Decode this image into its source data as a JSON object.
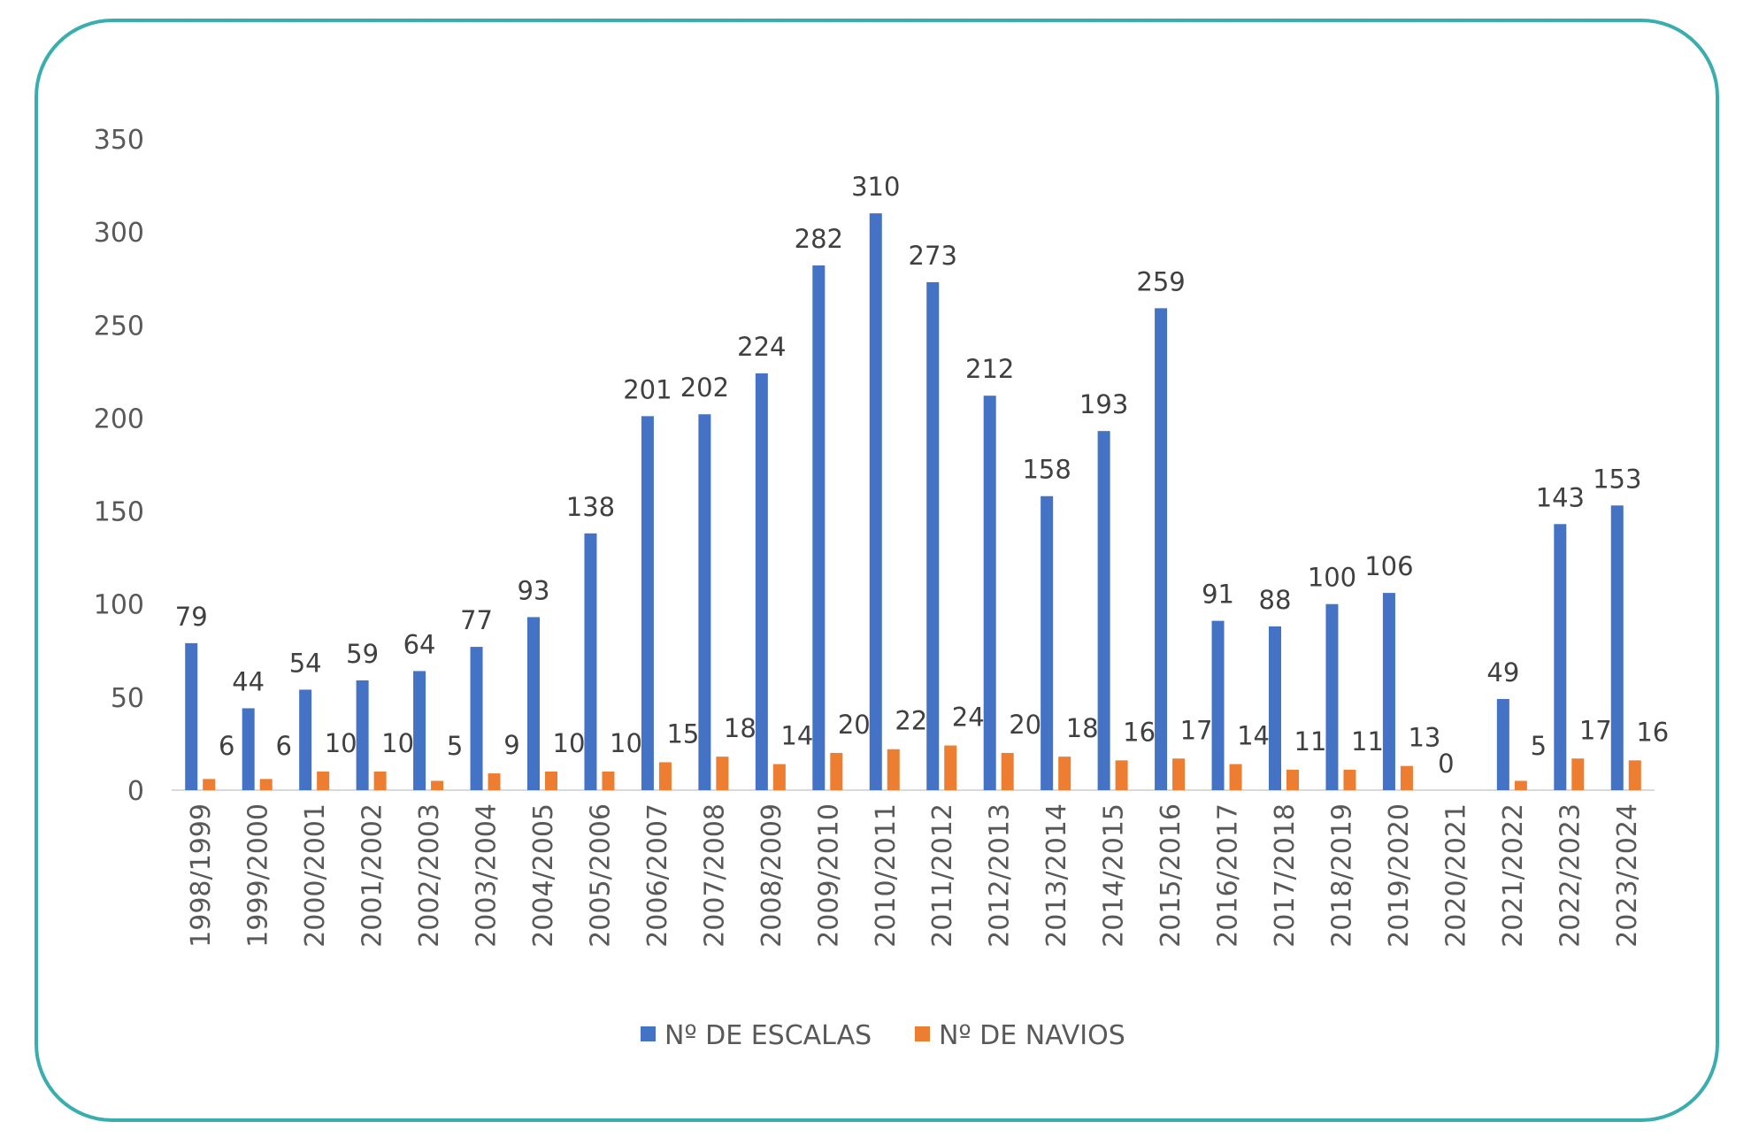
{
  "chart_data": {
    "type": "bar",
    "categories": [
      "1998/1999",
      "1999/2000",
      "2000/2001",
      "2001/2002",
      "2002/2003",
      "2003/2004",
      "2004/2005",
      "2005/2006",
      "2006/2007",
      "2007/2008",
      "2008/2009",
      "2009/2010",
      "2010/2011",
      "2011/2012",
      "2012/2013",
      "2013/2014",
      "2014/2015",
      "2015/2016",
      "2016/2017",
      "2017/2018",
      "2018/2019",
      "2019/2020",
      "2020/2021",
      "2021/2022",
      "2022/2023",
      "2023/2024"
    ],
    "series": [
      {
        "name": "Nº DE ESCALAS",
        "color": "#4472c4",
        "values": [
          79,
          44,
          54,
          59,
          64,
          77,
          93,
          138,
          201,
          202,
          224,
          282,
          310,
          273,
          212,
          158,
          193,
          259,
          91,
          88,
          100,
          106,
          0,
          49,
          143,
          153
        ]
      },
      {
        "name": "Nº DE NAVIOS",
        "color": "#ed7d31",
        "values": [
          6,
          6,
          10,
          10,
          5,
          9,
          10,
          10,
          15,
          18,
          14,
          20,
          22,
          24,
          20,
          18,
          16,
          17,
          14,
          11,
          11,
          13,
          null,
          5,
          17,
          16
        ]
      }
    ],
    "ylim": [
      0,
      350
    ],
    "yticks": [
      "0",
      "50",
      "100",
      "150",
      "200",
      "250",
      "300",
      "350"
    ],
    "grid": false,
    "legend": "bottom",
    "frame_color": "#3aaeae"
  }
}
